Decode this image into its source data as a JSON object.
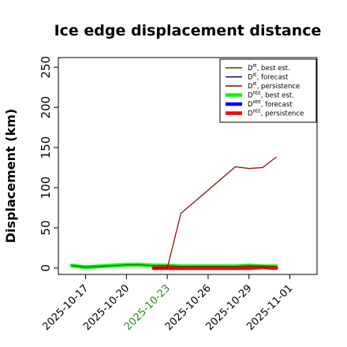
{
  "chart_data": {
    "type": "line",
    "title": "Ice edge displacement distance",
    "ylabel": "Displacement (km)",
    "xlabel": "",
    "ylim": [
      -8,
      262
    ],
    "xlim": [
      "2025-10-15",
      "2025-11-03"
    ],
    "yticks": [
      "0",
      "50",
      "100",
      "150",
      "200",
      "250"
    ],
    "xticks": [
      {
        "label": "2025-10-17",
        "color": "#000000"
      },
      {
        "label": "2025-10-20",
        "color": "#000000"
      },
      {
        "label": "2025-10-23",
        "color": "#228B22"
      },
      {
        "label": "2025-10-26",
        "color": "#000000"
      },
      {
        "label": "2025-10-29",
        "color": "#000000"
      },
      {
        "label": "2025-11-01",
        "color": "#000000"
      }
    ],
    "legend_position": "top-right",
    "series": [
      {
        "name": "D^IE, best est.",
        "legend_main": "D",
        "legend_sup": "IE",
        "legend_rest": ", best est.",
        "color": "#006400",
        "width": "thin",
        "x": [
          "2025-10-16",
          "2025-10-17",
          "2025-10-19",
          "2025-10-20",
          "2025-10-21",
          "2025-10-22",
          "2025-10-23",
          "2025-10-24",
          "2025-10-28",
          "2025-10-29",
          "2025-10-30",
          "2025-10-31"
        ],
        "y": [
          3,
          1,
          3,
          4,
          4,
          3,
          3,
          2,
          2,
          3,
          2,
          2
        ]
      },
      {
        "name": "D^IE, forecast",
        "legend_main": "D",
        "legend_sup": "IE",
        "legend_rest": ", forecast",
        "color": "#00008B",
        "width": "thin",
        "x": [],
        "y": []
      },
      {
        "name": "D^IE, persistence",
        "legend_main": "D",
        "legend_sup": "IE",
        "legend_rest": ", persistence",
        "color": "#8B0000",
        "width": "thin",
        "x": [
          "2025-10-22",
          "2025-10-23",
          "2025-10-24",
          "2025-10-28",
          "2025-10-29",
          "2025-10-30",
          "2025-10-31"
        ],
        "y": [
          0,
          0,
          68,
          126,
          124,
          125,
          138
        ]
      },
      {
        "name": "D^IIEE, best est.",
        "legend_main": "D",
        "legend_sup": "IIEE",
        "legend_rest": ", best est.",
        "color": "#00FF00",
        "width": "thick",
        "x": [
          "2025-10-16",
          "2025-10-17",
          "2025-10-19",
          "2025-10-20",
          "2025-10-21",
          "2025-10-22",
          "2025-10-23",
          "2025-10-24",
          "2025-10-28",
          "2025-10-29",
          "2025-10-30",
          "2025-10-31"
        ],
        "y": [
          3,
          1,
          3,
          4,
          4,
          3,
          3,
          2,
          2,
          3,
          2,
          2
        ]
      },
      {
        "name": "D^IIEE, forecast",
        "legend_main": "D",
        "legend_sup": "IIEE",
        "legend_rest": ", forecast",
        "color": "#0000FF",
        "width": "thick",
        "x": [],
        "y": []
      },
      {
        "name": "D^IIEE, persistence",
        "legend_main": "D",
        "legend_sup": "IIEE",
        "legend_rest": ", persistence",
        "color": "#FF0000",
        "width": "thick",
        "x": [
          "2025-10-22",
          "2025-10-23",
          "2025-10-24",
          "2025-10-28",
          "2025-10-29",
          "2025-10-30",
          "2025-10-31"
        ],
        "y": [
          0,
          0,
          0,
          0,
          0,
          1,
          0
        ]
      }
    ]
  }
}
